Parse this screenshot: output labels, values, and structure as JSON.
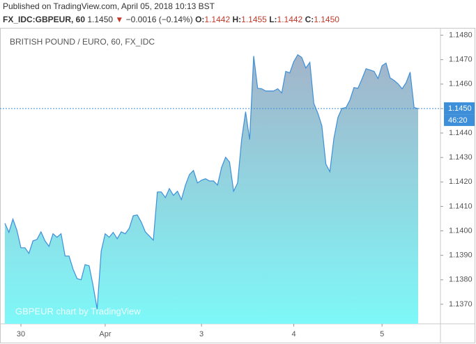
{
  "header": {
    "published": "Published on TradingView.com, April 05, 2018 10:13 BST",
    "symbol": "FX_IDC:GBPEUR, 60",
    "last": "1.1450",
    "arrow": "▼",
    "change": "−0.0016 (−0.14%)",
    "open_label": "O:",
    "open": "1.1442",
    "high_label": "H:",
    "high": "1.1455",
    "low_label": "L:",
    "low": "1.1442",
    "close_label": "C:",
    "close": "1.1450"
  },
  "chart_data": {
    "type": "area",
    "title": "BRITISH POUND / EURO, 60, FX_IDC",
    "watermark": "GBPEUR chart by TradingView",
    "line_color": "#3d8fd9",
    "fill_top": "#a3b3c9",
    "fill_bottom": "#7ef8f8",
    "categories": [
      null,
      null,
      null,
      null,
      "30",
      null,
      null,
      null,
      null,
      null,
      null,
      null,
      null,
      null,
      null,
      null,
      null,
      null,
      null,
      null,
      null,
      null,
      null,
      null,
      null,
      "Apr",
      null,
      null,
      null,
      null,
      null,
      null,
      null,
      null,
      null,
      null,
      null,
      null,
      null,
      null,
      null,
      null,
      null,
      null,
      null,
      null,
      null,
      null,
      null,
      "3",
      null,
      null,
      null,
      null,
      null,
      null,
      null,
      null,
      null,
      null,
      null,
      null,
      null,
      null,
      null,
      null,
      null,
      null,
      null,
      null,
      null,
      null,
      "4",
      null,
      null,
      null,
      null,
      null,
      null,
      null,
      null,
      null,
      null,
      null,
      null,
      null,
      null,
      null,
      null,
      null,
      null,
      null,
      null,
      null,
      "5",
      null,
      null,
      null,
      null,
      null,
      null,
      null,
      null,
      null
    ],
    "values": [
      1.14031,
      1.13994,
      1.14048,
      1.14002,
      1.13931,
      1.13931,
      1.13908,
      1.13959,
      1.13965,
      1.13996,
      1.13959,
      1.13937,
      1.13988,
      1.13974,
      1.13988,
      1.13897,
      1.13897,
      1.13843,
      1.13805,
      1.138,
      1.13862,
      1.13857,
      1.13774,
      1.1368,
      1.13917,
      1.13988,
      1.13974,
      1.13994,
      1.13968,
      1.13996,
      1.13988,
      1.14011,
      1.14062,
      1.14065,
      1.14036,
      1.13996,
      1.13979,
      1.13962,
      1.14159,
      1.14159,
      1.14136,
      1.14173,
      1.14145,
      1.14162,
      1.14128,
      1.14187,
      1.1423,
      1.14247,
      1.14196,
      1.14207,
      1.14213,
      1.14204,
      1.14204,
      1.14187,
      1.14259,
      1.14301,
      1.14281,
      1.14162,
      1.14196,
      1.14373,
      1.14487,
      1.14373,
      1.14715,
      1.14583,
      1.14581,
      1.14572,
      1.14572,
      1.14572,
      1.14581,
      1.14564,
      1.14652,
      1.14646,
      1.14692,
      1.1472,
      1.14709,
      1.14666,
      1.14689,
      1.14521,
      1.14481,
      1.1443,
      1.14273,
      1.14242,
      1.14378,
      1.14464,
      1.14501,
      1.14504,
      1.14535,
      1.14586,
      1.14583,
      1.14621,
      1.14663,
      1.14658,
      1.14652,
      1.14623,
      1.14675,
      1.14686,
      1.14626,
      1.14615,
      1.14601,
      1.14581,
      1.14606,
      1.14649,
      1.14504,
      1.145
    ],
    "ylim": [
      1.1362,
      1.1483
    ],
    "yticks": [
      {
        "value": 1.137,
        "label": "1.1370"
      },
      {
        "value": 1.138,
        "label": "1.1380"
      },
      {
        "value": 1.139,
        "label": "1.1390"
      },
      {
        "value": 1.14,
        "label": "1.1400"
      },
      {
        "value": 1.141,
        "label": "1.1410"
      },
      {
        "value": 1.142,
        "label": "1.1420"
      },
      {
        "value": 1.143,
        "label": "1.1430"
      },
      {
        "value": 1.144,
        "label": "1.1440"
      },
      {
        "value": 1.145,
        "label": "1.1450"
      },
      {
        "value": 1.146,
        "label": "1.1460"
      },
      {
        "value": 1.147,
        "label": "1.1470"
      },
      {
        "value": 1.148,
        "label": "1.1480"
      }
    ],
    "last_price": {
      "value": 1.145,
      "label": "1.1450"
    },
    "countdown": "46:20"
  }
}
